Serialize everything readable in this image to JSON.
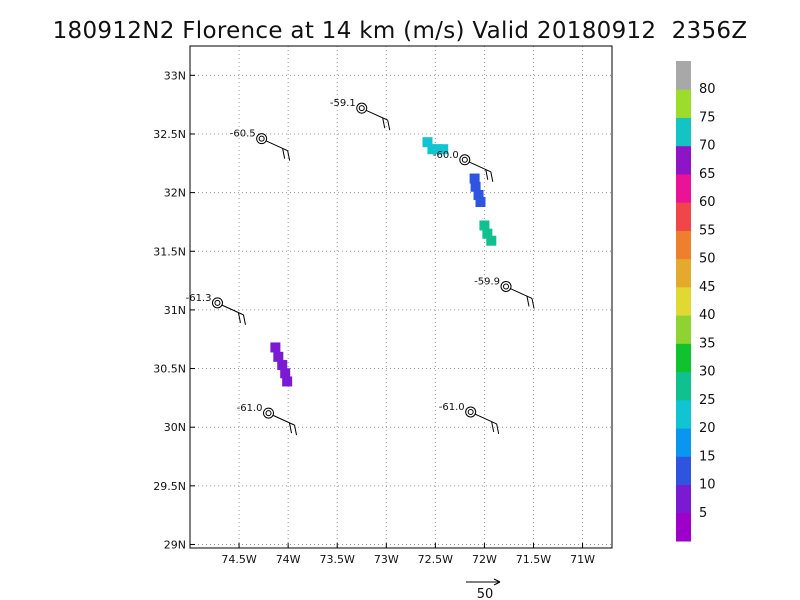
{
  "title": "180912N2 Florence at 14 km (m/s) Valid 20180912  2356Z",
  "chart_data": {
    "type": "scatter",
    "title": "180912N2 Florence at 14 km (m/s) Valid 20180912  2356Z",
    "xlim": [
      -75.0,
      -70.7
    ],
    "ylim": [
      28.97,
      33.25
    ],
    "grid": true,
    "x_ticks": [
      {
        "value": -74.5,
        "label": "74.5W"
      },
      {
        "value": -74.0,
        "label": "74W"
      },
      {
        "value": -73.5,
        "label": "73.5W"
      },
      {
        "value": -73.0,
        "label": "73W"
      },
      {
        "value": -72.5,
        "label": "72.5W"
      },
      {
        "value": -72.0,
        "label": "72W"
      },
      {
        "value": -71.5,
        "label": "71.5W"
      },
      {
        "value": -71.0,
        "label": "71W"
      }
    ],
    "y_ticks": [
      {
        "value": 29.0,
        "label": "29N"
      },
      {
        "value": 29.5,
        "label": "29.5N"
      },
      {
        "value": 30.0,
        "label": "30N"
      },
      {
        "value": 30.5,
        "label": "30.5N"
      },
      {
        "value": 31.0,
        "label": "31N"
      },
      {
        "value": 31.5,
        "label": "31.5N"
      },
      {
        "value": 32.0,
        "label": "32N"
      },
      {
        "value": 32.5,
        "label": "32.5N"
      },
      {
        "value": 33.0,
        "label": "33N"
      }
    ],
    "stations": [
      {
        "lon": -73.25,
        "lat": 32.72,
        "label": "-59.1"
      },
      {
        "lon": -74.27,
        "lat": 32.46,
        "label": "-60.5"
      },
      {
        "lon": -72.2,
        "lat": 32.28,
        "label": "-60.0"
      },
      {
        "lon": -74.72,
        "lat": 31.06,
        "label": "-61.3"
      },
      {
        "lon": -71.78,
        "lat": 31.2,
        "label": "-59.9"
      },
      {
        "lon": -74.2,
        "lat": 30.12,
        "label": "-61.0"
      },
      {
        "lon": -72.14,
        "lat": 30.13,
        "label": "-61.0"
      }
    ],
    "wind_cells": [
      {
        "lon": -72.58,
        "lat": 32.43,
        "speed": 20
      },
      {
        "lon": -72.53,
        "lat": 32.37,
        "speed": 20
      },
      {
        "lon": -72.48,
        "lat": 32.37,
        "speed": 20
      },
      {
        "lon": -72.42,
        "lat": 32.37,
        "speed": 20
      },
      {
        "lon": -72.1,
        "lat": 32.12,
        "speed": 14
      },
      {
        "lon": -72.09,
        "lat": 32.05,
        "speed": 14
      },
      {
        "lon": -72.06,
        "lat": 31.98,
        "speed": 14
      },
      {
        "lon": -72.04,
        "lat": 31.92,
        "speed": 14
      },
      {
        "lon": -72.0,
        "lat": 31.72,
        "speed": 27
      },
      {
        "lon": -71.97,
        "lat": 31.65,
        "speed": 27
      },
      {
        "lon": -71.93,
        "lat": 31.59,
        "speed": 27
      },
      {
        "lon": -74.13,
        "lat": 30.68,
        "speed": 8
      },
      {
        "lon": -74.1,
        "lat": 30.6,
        "speed": 8
      },
      {
        "lon": -74.06,
        "lat": 30.53,
        "speed": 8
      },
      {
        "lon": -74.03,
        "lat": 30.46,
        "speed": 8
      },
      {
        "lon": -74.01,
        "lat": 30.39,
        "speed": 8
      }
    ],
    "colorbar": {
      "labels": [
        "5",
        "10",
        "15",
        "20",
        "25",
        "30",
        "35",
        "40",
        "45",
        "50",
        "55",
        "60",
        "65",
        "70",
        "75",
        "80"
      ],
      "colors": [
        "#9d00c8",
        "#7a1ad2",
        "#2f55e0",
        "#0a96f0",
        "#10c4d2",
        "#10c08e",
        "#10c22e",
        "#8ed332",
        "#e2d834",
        "#e3aa2e",
        "#ee7f2c",
        "#f0464a",
        "#ea1296",
        "#8e14c6",
        "#14c3c3",
        "#9ddc2c",
        "#a8a8a8"
      ]
    },
    "reference_vector": {
      "label": "50",
      "speed": 50
    }
  }
}
